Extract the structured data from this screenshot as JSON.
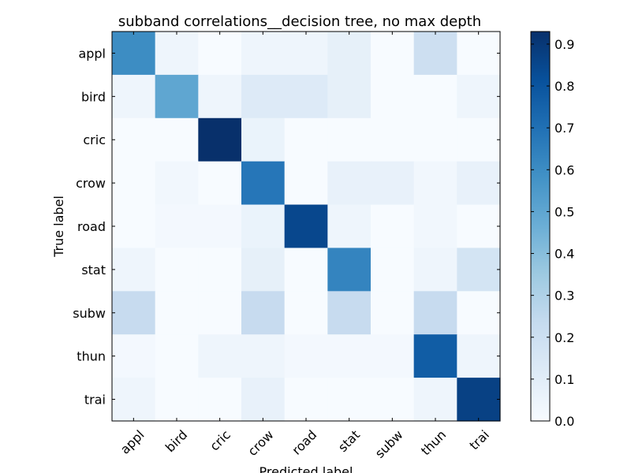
{
  "chart_data": {
    "type": "heatmap",
    "title": "subband correlations__decision tree, no max depth",
    "xlabel": "Predicted label",
    "ylabel": "True label",
    "x_categories": [
      "appl",
      "bird",
      "cric",
      "crow",
      "road",
      "stat",
      "subw",
      "thun",
      "trai"
    ],
    "y_categories": [
      "appl",
      "bird",
      "cric",
      "crow",
      "road",
      "stat",
      "subw",
      "thun",
      "trai"
    ],
    "values": [
      [
        0.6,
        0.04,
        0.0,
        0.04,
        0.04,
        0.08,
        0.0,
        0.2,
        0.0
      ],
      [
        0.04,
        0.5,
        0.04,
        0.12,
        0.12,
        0.08,
        0.0,
        0.0,
        0.04
      ],
      [
        0.0,
        0.0,
        0.93,
        0.06,
        0.0,
        0.0,
        0.0,
        0.0,
        0.0
      ],
      [
        0.0,
        0.03,
        0.0,
        0.68,
        0.0,
        0.07,
        0.07,
        0.03,
        0.07
      ],
      [
        0.0,
        0.02,
        0.02,
        0.06,
        0.85,
        0.04,
        0.0,
        0.03,
        0.0
      ],
      [
        0.04,
        0.0,
        0.0,
        0.08,
        0.0,
        0.63,
        0.0,
        0.04,
        0.17
      ],
      [
        0.23,
        0.0,
        0.0,
        0.23,
        0.0,
        0.23,
        0.0,
        0.23,
        0.0
      ],
      [
        0.02,
        0.0,
        0.04,
        0.04,
        0.02,
        0.02,
        0.02,
        0.77,
        0.04
      ],
      [
        0.04,
        0.0,
        0.0,
        0.07,
        0.0,
        0.0,
        0.0,
        0.04,
        0.87
      ]
    ],
    "vmin": 0.0,
    "vmax": 0.93,
    "colormap": "Blues",
    "colorbar_ticks": [
      "0.0",
      "0.1",
      "0.2",
      "0.3",
      "0.4",
      "0.5",
      "0.6",
      "0.7",
      "0.8",
      "0.9"
    ],
    "colorbar_tick_values": [
      0.0,
      0.1,
      0.2,
      0.3,
      0.4,
      0.5,
      0.6,
      0.7,
      0.8,
      0.9
    ]
  }
}
